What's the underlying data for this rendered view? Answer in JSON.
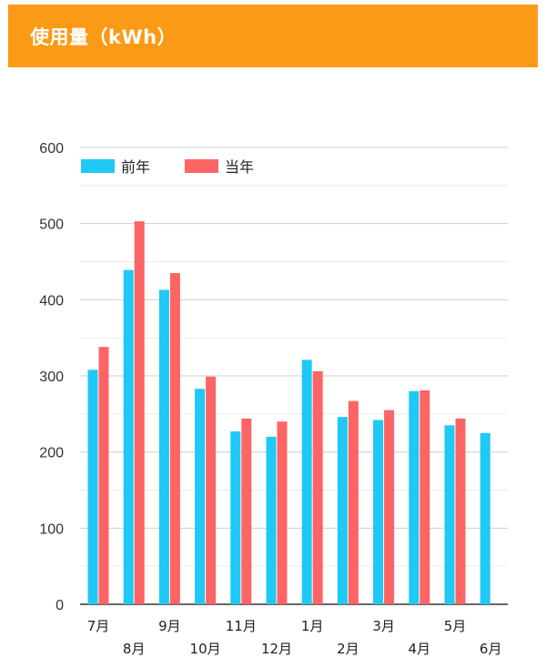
{
  "header": {
    "title": "使用量（kWh）"
  },
  "colors": {
    "header_bg": "#fb9a15",
    "prev_year": "#1fc8f5",
    "curr_year": "#fd6464",
    "grid_major": "#cfcfcf",
    "grid_minor": "#ececec",
    "axis": "#333333"
  },
  "chart_data": {
    "type": "bar",
    "title": "使用量（kWh）",
    "categories": [
      "7月",
      "8月",
      "9月",
      "10月",
      "11月",
      "12月",
      "1月",
      "2月",
      "3月",
      "4月",
      "5月",
      "6月"
    ],
    "series": [
      {
        "name": "前年",
        "color": "#1fc8f5",
        "values": [
          308,
          439,
          413,
          283,
          227,
          220,
          321,
          246,
          242,
          280,
          235,
          225
        ]
      },
      {
        "name": "当年",
        "color": "#fd6464",
        "values": [
          338,
          503,
          435,
          299,
          244,
          240,
          306,
          267,
          255,
          281,
          244,
          null
        ]
      }
    ],
    "ylim": [
      0,
      600
    ],
    "yticks": [
      0,
      100,
      200,
      300,
      400,
      500,
      600
    ],
    "grid": true,
    "legend_position": "top-left"
  }
}
